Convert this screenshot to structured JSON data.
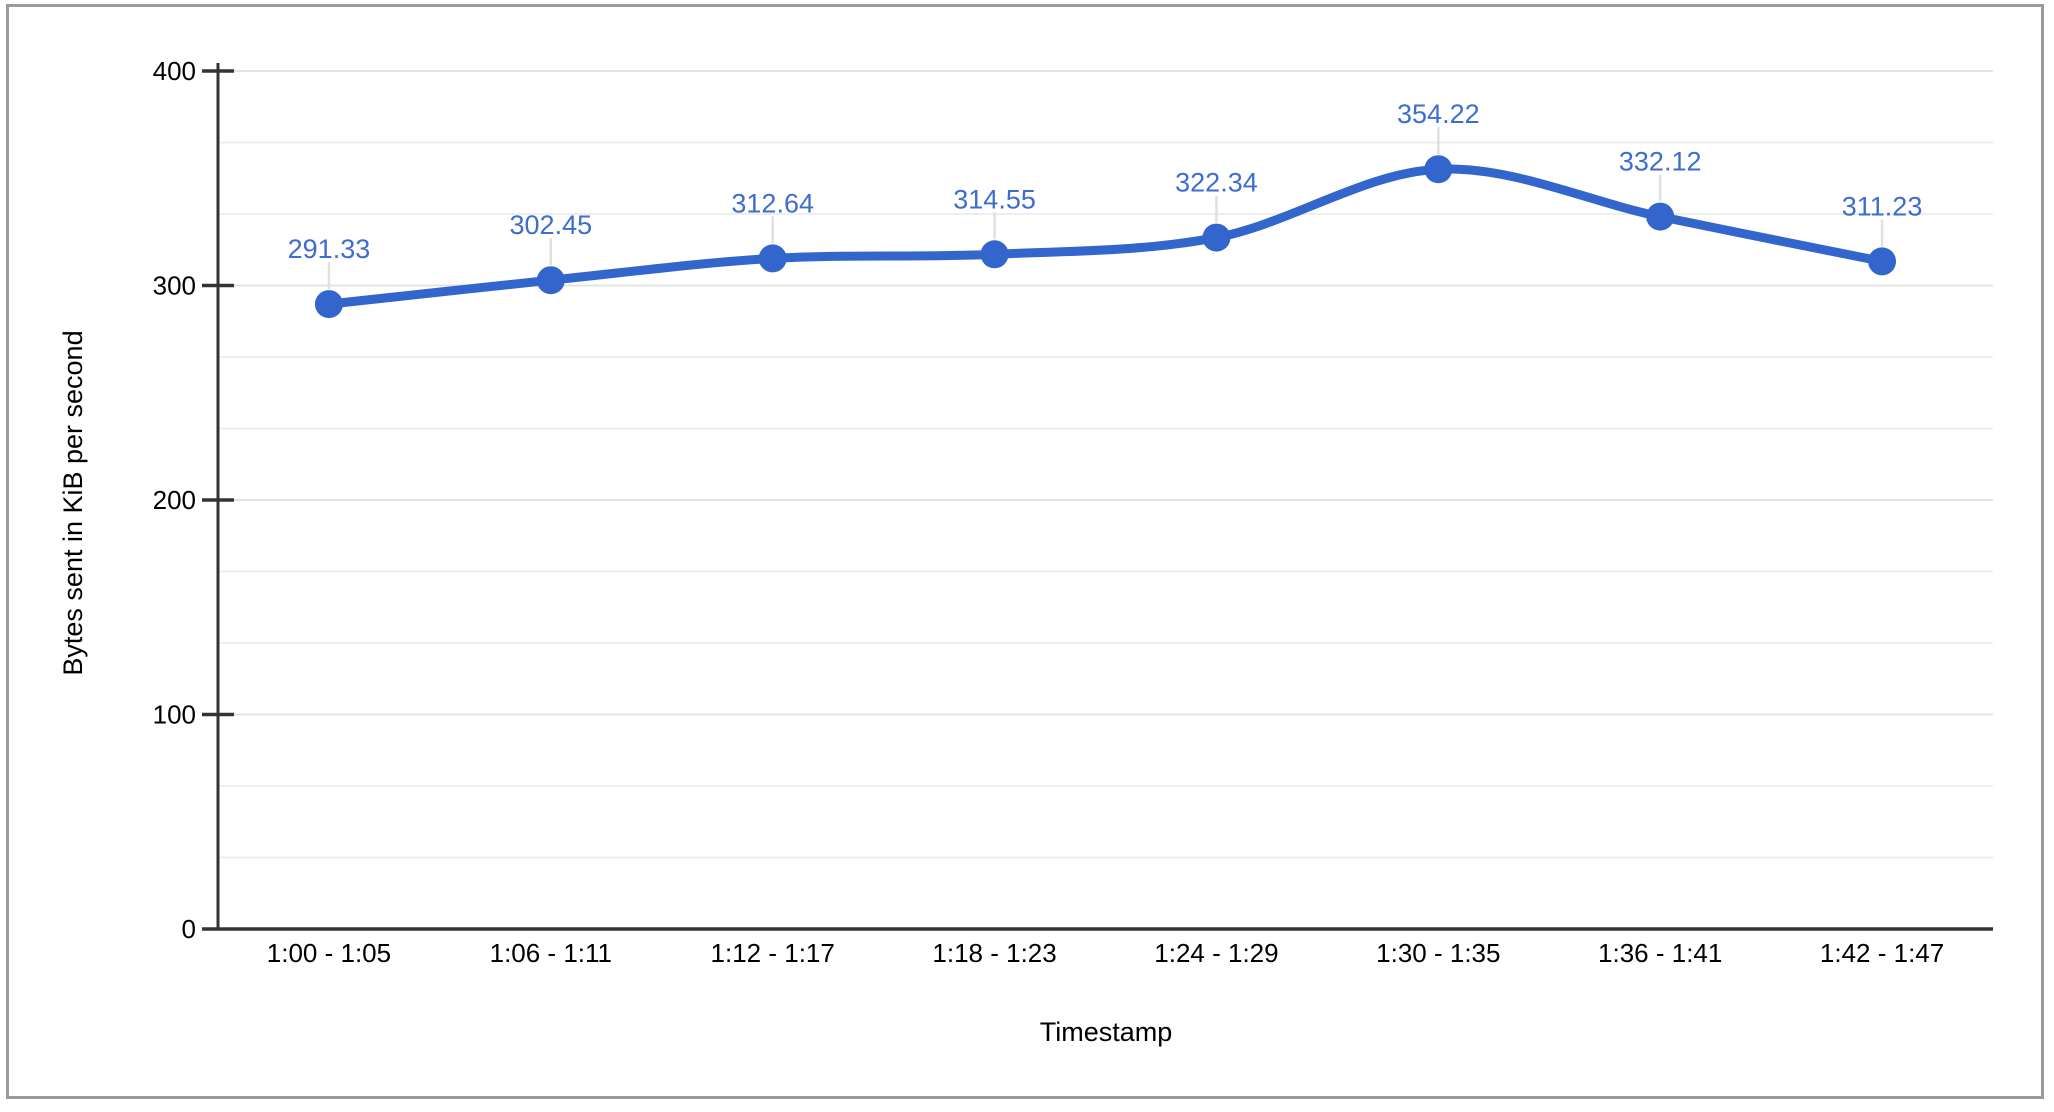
{
  "chart_data": {
    "type": "line",
    "smooth": true,
    "categories": [
      "1:00 - 1:05",
      "1:06 - 1:11",
      "1:12 - 1:17",
      "1:18 - 1:23",
      "1:24 - 1:29",
      "1:30 - 1:35",
      "1:36 - 1:41",
      "1:42 - 1:47"
    ],
    "values": [
      291.33,
      302.45,
      312.64,
      314.55,
      322.34,
      354.22,
      332.12,
      311.23
    ],
    "value_labels": [
      "291.33",
      "302.45",
      "312.64",
      "314.55",
      "322.34",
      "354.22",
      "332.12",
      "311.23"
    ],
    "xlabel": "Timestamp",
    "ylabel": "Bytes sent in KiB per second",
    "ylim": [
      0,
      400
    ],
    "y_ticks": [
      0,
      100,
      200,
      300,
      400
    ],
    "y_tick_labels": [
      "0",
      "100",
      "200",
      "300",
      "400"
    ],
    "minor_gridlines_per_major": 2,
    "grid": true,
    "legend_position": "none",
    "colors": {
      "series": "#3366cc",
      "data_label": "#3e6ccf",
      "axis_text": "#000000",
      "axis_line": "#333333",
      "gridline_major": "#e3e3e3",
      "gridline_minor": "#eeeeee",
      "leader_line": "#e0e0e0",
      "frame_border": "#9b9b9b",
      "background": "#ffffff"
    }
  }
}
